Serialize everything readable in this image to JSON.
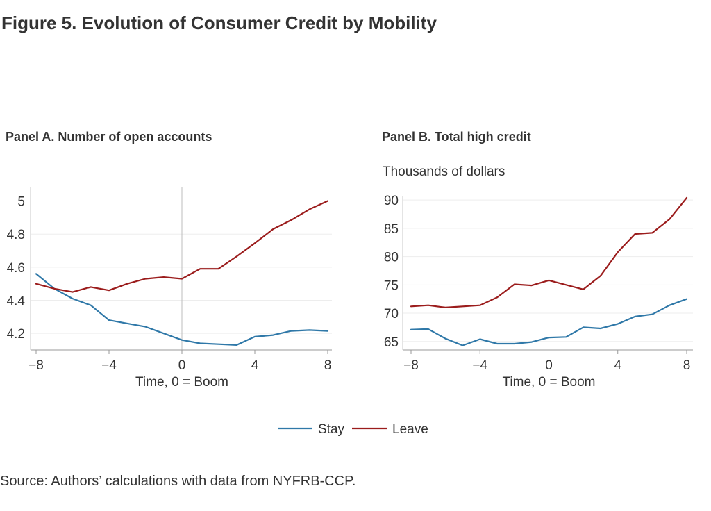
{
  "figure": {
    "title": "Figure 5. Evolution of Consumer Credit by Mobility",
    "source": "Source: Authors’ calculations with data from NYFRB-CCP.",
    "legend": {
      "placement": "bottom-center",
      "items": [
        {
          "name": "Stay",
          "color": "#2f78a8"
        },
        {
          "name": "Leave",
          "color": "#9b1c1c"
        }
      ]
    }
  },
  "chart_data": [
    {
      "type": "line",
      "title": "Panel A. Number of open accounts",
      "ylabel": "",
      "xlabel": "Time, 0 = Boom",
      "xlim": [
        -8,
        8
      ],
      "ylim": [
        4.1,
        5.04
      ],
      "xticks": [
        -8,
        -4,
        0,
        4,
        8
      ],
      "xtick_labels": [
        "−8",
        "−4",
        "0",
        "4",
        "8"
      ],
      "yticks": [
        4.2,
        4.4,
        4.6,
        4.8,
        5
      ],
      "ytick_labels": [
        "4.2",
        "4.4",
        "4.6",
        "4.8",
        "5"
      ],
      "grid": true,
      "x": [
        -8,
        -7,
        -6,
        -5,
        -4,
        -3,
        -2,
        -1,
        0,
        1,
        2,
        3,
        4,
        5,
        6,
        7,
        8
      ],
      "series": [
        {
          "name": "Stay",
          "color": "#2f78a8",
          "values": [
            4.56,
            4.47,
            4.41,
            4.37,
            4.28,
            4.26,
            4.24,
            4.2,
            4.16,
            4.14,
            4.135,
            4.13,
            4.18,
            4.19,
            4.215,
            4.22,
            4.215
          ]
        },
        {
          "name": "Leave",
          "color": "#9b1c1c",
          "values": [
            4.5,
            4.47,
            4.45,
            4.48,
            4.46,
            4.5,
            4.53,
            4.54,
            4.53,
            4.59,
            4.59,
            4.665,
            4.745,
            4.83,
            4.885,
            4.95,
            5.0
          ]
        }
      ]
    },
    {
      "type": "line",
      "title": "Panel B. Total high credit",
      "ylabel": "Thousands of dollars",
      "xlabel": "Time, 0 = Boom",
      "xlim": [
        -8,
        8
      ],
      "ylim": [
        63.5,
        91
      ],
      "xticks": [
        -8,
        -4,
        0,
        4,
        8
      ],
      "xtick_labels": [
        "−8",
        "−4",
        "0",
        "4",
        "8"
      ],
      "yticks": [
        65,
        70,
        75,
        80,
        85,
        90
      ],
      "ytick_labels": [
        "65",
        "70",
        "75",
        "80",
        "85",
        "90"
      ],
      "grid": true,
      "x": [
        -8,
        -7,
        -6,
        -5,
        -4,
        -3,
        -2,
        -1,
        0,
        1,
        2,
        3,
        4,
        5,
        6,
        7,
        8
      ],
      "series": [
        {
          "name": "Stay",
          "color": "#2f78a8",
          "values": [
            67.1,
            67.2,
            65.5,
            64.3,
            65.4,
            64.6,
            64.6,
            64.9,
            65.7,
            65.8,
            67.5,
            67.3,
            68.1,
            69.4,
            69.8,
            71.4,
            72.5
          ]
        },
        {
          "name": "Leave",
          "color": "#9b1c1c",
          "values": [
            71.2,
            71.4,
            71.0,
            71.2,
            71.4,
            72.8,
            75.1,
            74.9,
            75.8,
            75.0,
            74.2,
            76.6,
            80.8,
            84.0,
            84.2,
            86.6,
            90.4
          ]
        }
      ]
    }
  ]
}
